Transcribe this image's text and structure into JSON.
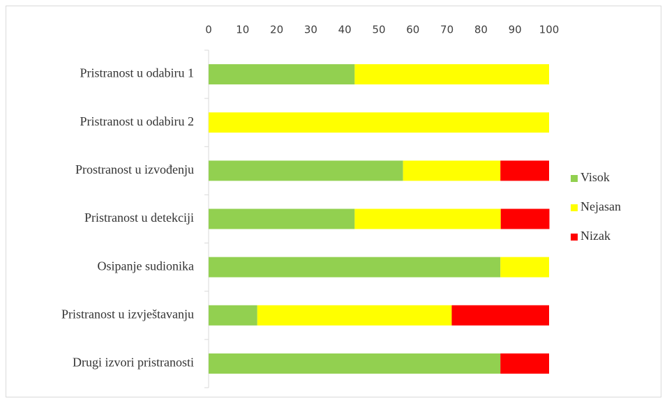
{
  "chart_data": {
    "type": "stacked-bar-horizontal",
    "categories": [
      "Pristranost u odabiru 1",
      "Pristranost u odabiru 2",
      "Prostranost u izvođenju",
      "Pristranost u detekciji",
      "Osipanje sudionika",
      "Pristranost u izvještavanju",
      "Drugi izvori pristranosti"
    ],
    "series": [
      {
        "name": "Visok",
        "color": "#92d050",
        "values": [
          42.9,
          0,
          57.1,
          42.9,
          85.7,
          14.3,
          85.7
        ]
      },
      {
        "name": "Nejasan",
        "color": "#ffff00",
        "values": [
          57.1,
          100,
          28.6,
          42.9,
          14.3,
          57.1,
          0
        ]
      },
      {
        "name": "Nizak",
        "color": "#ff0000",
        "values": [
          0,
          0,
          14.3,
          14.3,
          0,
          28.6,
          14.3
        ]
      }
    ],
    "xlim": [
      0,
      100
    ],
    "xticks": [
      0,
      10,
      20,
      30,
      40,
      50,
      60,
      70,
      80,
      90,
      100
    ],
    "legend": "right"
  }
}
